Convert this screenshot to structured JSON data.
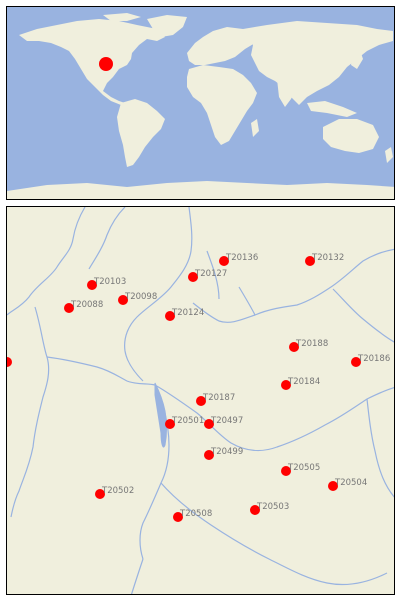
{
  "colors": {
    "ocean": "#99b3e0",
    "land": "#f0efdd",
    "river": "#99b3e0",
    "marker": "#ff0000",
    "label": "#777777"
  },
  "world_map": {
    "marker_icon": "red-dot-icon"
  },
  "region_map": {
    "stations": [
      {
        "id": "T20136"
      },
      {
        "id": "T20132"
      },
      {
        "id": "T20127"
      },
      {
        "id": "T20103"
      },
      {
        "id": "T20098"
      },
      {
        "id": "T20088"
      },
      {
        "id": "T20124"
      },
      {
        "id": "T20188"
      },
      {
        "id": "T20186"
      },
      {
        "id": "T20184"
      },
      {
        "id": "T20187"
      },
      {
        "id": "T20501"
      },
      {
        "id": "T20497"
      },
      {
        "id": "T20499"
      },
      {
        "id": "T20505"
      },
      {
        "id": "T20504"
      },
      {
        "id": "T20502"
      },
      {
        "id": "T20503"
      },
      {
        "id": "T20508"
      }
    ]
  }
}
